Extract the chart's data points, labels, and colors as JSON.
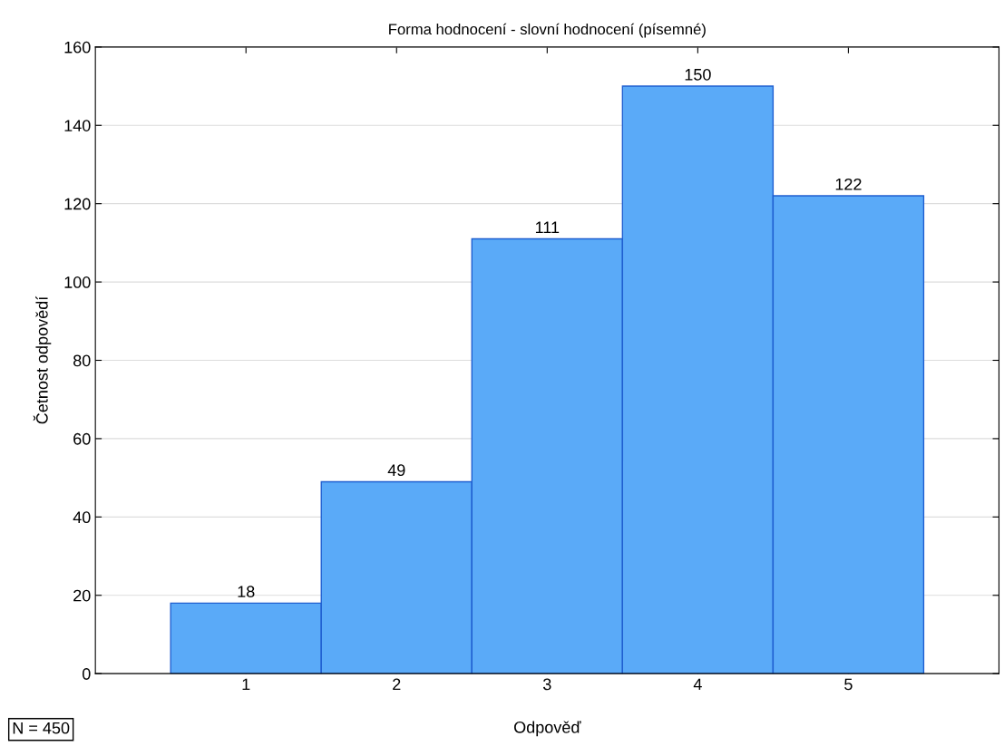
{
  "chart_data": {
    "type": "bar",
    "title": "Forma hodnocení - slovní hodnocení (písemné)",
    "xlabel": "Odpověď",
    "ylabel": "Četnost odpovědí",
    "categories": [
      "1",
      "2",
      "3",
      "4",
      "5"
    ],
    "values": [
      18,
      49,
      111,
      150,
      122
    ],
    "color": "#5aaaf8",
    "ylim": [
      0,
      160
    ],
    "yticks": [
      0,
      20,
      40,
      60,
      80,
      100,
      120,
      140,
      160
    ],
    "grid": "y",
    "data_labels": true,
    "annotations": [
      "N = 450"
    ]
  }
}
